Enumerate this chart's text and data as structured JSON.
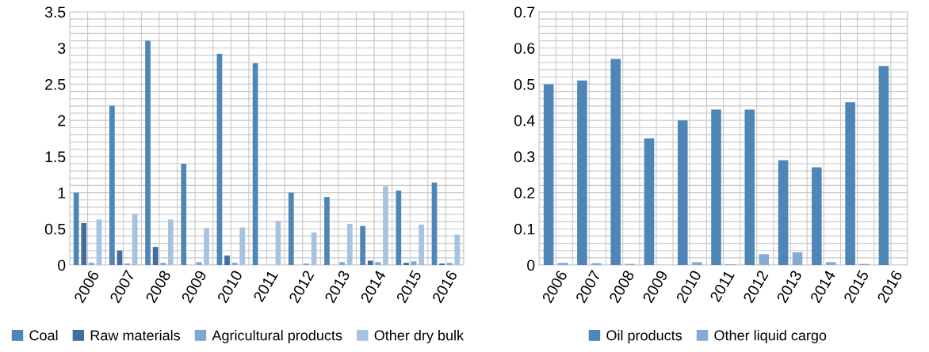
{
  "chart_data": [
    {
      "type": "bar",
      "categories": [
        "2006",
        "2007",
        "2008",
        "2009",
        "2010",
        "2011",
        "2012",
        "2013",
        "2014",
        "2015",
        "2016"
      ],
      "series": [
        {
          "name": "Coal",
          "color": "#4f86b8",
          "values": [
            1.0,
            2.2,
            3.1,
            1.4,
            2.92,
            2.79,
            1.0,
            0.94,
            0.54,
            1.03,
            1.14
          ]
        },
        {
          "name": "Raw materials",
          "color": "#3f6f9a",
          "values": [
            0.58,
            0.2,
            0.25,
            null,
            0.13,
            null,
            null,
            null,
            0.06,
            0.03,
            0.02
          ]
        },
        {
          "name": "Agricultural products",
          "color": "#7ea6cf",
          "values": [
            0.03,
            0.02,
            0.03,
            0.04,
            0.03,
            null,
            0.02,
            0.04,
            0.04,
            0.05,
            0.03
          ]
        },
        {
          "name": "Other dry bulk",
          "color": "#a7c3df",
          "values": [
            0.63,
            0.71,
            0.63,
            0.51,
            0.52,
            0.61,
            0.45,
            0.57,
            1.09,
            0.56,
            0.42
          ]
        }
      ],
      "ylim": [
        0,
        3.5
      ],
      "yticks": [
        0,
        0.5,
        1,
        1.5,
        2,
        2.5,
        3,
        3.5
      ],
      "grid": true,
      "legend": "bottom"
    },
    {
      "type": "bar",
      "categories": [
        "2006",
        "2007",
        "2008",
        "2009",
        "2010",
        "2011",
        "2012",
        "2013",
        "2014",
        "2015",
        "2016"
      ],
      "series": [
        {
          "name": "Oil products",
          "color": "#4f86b8",
          "values": [
            0.5,
            0.51,
            0.57,
            0.35,
            0.4,
            0.43,
            0.43,
            0.29,
            0.27,
            0.45,
            0.55
          ]
        },
        {
          "name": "Other liquid cargo",
          "color": "#85abd3",
          "values": [
            0.006,
            0.005,
            0.003,
            null,
            0.008,
            0.002,
            0.03,
            0.035,
            0.008,
            0.003,
            null
          ]
        }
      ],
      "ylim": [
        0,
        0.7
      ],
      "yticks": [
        0,
        0.1,
        0.2,
        0.3,
        0.4,
        0.5,
        0.6,
        0.7
      ],
      "grid": true,
      "legend": "bottom"
    }
  ]
}
